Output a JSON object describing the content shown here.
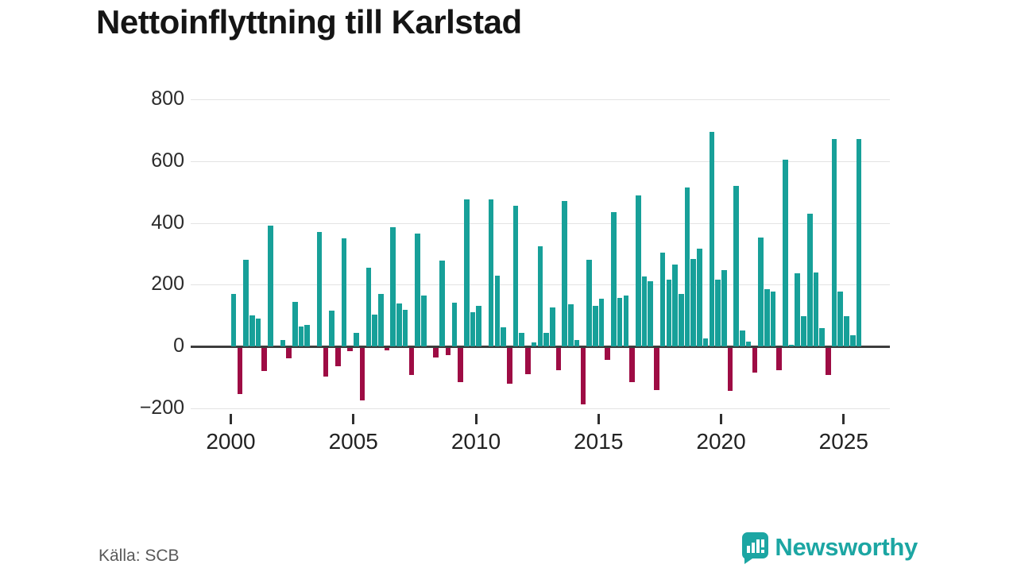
{
  "header": {
    "title": "Nettoinflyttning till Karlstad"
  },
  "footer": {
    "source_label": "Källa: SCB",
    "brand_name": "Newsworthy",
    "brand_color": "#1ca6a3"
  },
  "chart_data": {
    "type": "bar",
    "title": "Nettoinflyttning till Karlstad",
    "xlabel": "",
    "ylabel": "",
    "unit": "persons per quarter",
    "ylim": [
      -200,
      800
    ],
    "grid": true,
    "legend_position": "none",
    "positive_color": "#17a099",
    "negative_color": "#9e0c44",
    "y_ticks": [
      800,
      600,
      400,
      200,
      0,
      -200
    ],
    "y_tick_labels": [
      "800",
      "600",
      "400",
      "200",
      "0",
      "−200"
    ],
    "x_ticks": [
      2000,
      2005,
      2010,
      2015,
      2020,
      2025
    ],
    "x_tick_labels": [
      "2000",
      "2005",
      "2010",
      "2015",
      "2020",
      "2025"
    ],
    "quarters_per_year": 4,
    "start": "2000-Q1",
    "end": "2025-Q3",
    "years": [
      {
        "year": 2000,
        "values": [
          170,
          -150,
          280,
          100
        ]
      },
      {
        "year": 2001,
        "values": [
          90,
          -75,
          390,
          0
        ]
      },
      {
        "year": 2002,
        "values": [
          20,
          -34,
          145,
          65
        ]
      },
      {
        "year": 2003,
        "values": [
          70,
          0,
          370,
          -95
        ]
      },
      {
        "year": 2004,
        "values": [
          115,
          -60,
          350,
          -12
        ]
      },
      {
        "year": 2005,
        "values": [
          45,
          -170,
          255,
          103
        ]
      },
      {
        "year": 2006,
        "values": [
          170,
          -8,
          385,
          140
        ]
      },
      {
        "year": 2007,
        "values": [
          118,
          -90,
          365,
          165
        ]
      },
      {
        "year": 2008,
        "values": [
          0,
          -31,
          277,
          -24
        ]
      },
      {
        "year": 2009,
        "values": [
          141,
          -111,
          475,
          110
        ]
      },
      {
        "year": 2010,
        "values": [
          130,
          0,
          475,
          230
        ]
      },
      {
        "year": 2011,
        "values": [
          62,
          -118,
          455,
          43
        ]
      },
      {
        "year": 2012,
        "values": [
          -86,
          13,
          325,
          43
        ]
      },
      {
        "year": 2013,
        "values": [
          125,
          -73,
          470,
          137
        ]
      },
      {
        "year": 2014,
        "values": [
          21,
          -185,
          280,
          130
        ]
      },
      {
        "year": 2015,
        "values": [
          155,
          -39,
          435,
          158
        ]
      },
      {
        "year": 2016,
        "values": [
          165,
          -112,
          490,
          227
        ]
      },
      {
        "year": 2017,
        "values": [
          210,
          -137,
          305,
          215
        ]
      },
      {
        "year": 2018,
        "values": [
          265,
          170,
          515,
          283
        ]
      },
      {
        "year": 2019,
        "values": [
          316,
          26,
          695,
          215
        ]
      },
      {
        "year": 2020,
        "values": [
          246,
          -140,
          520,
          51
        ]
      },
      {
        "year": 2021,
        "values": [
          15,
          -82,
          352,
          185
        ]
      },
      {
        "year": 2022,
        "values": [
          178,
          -73,
          605,
          5
        ]
      },
      {
        "year": 2023,
        "values": [
          238,
          98,
          429,
          240
        ]
      },
      {
        "year": 2024,
        "values": [
          58,
          -90,
          673,
          178
        ]
      },
      {
        "year": 2025,
        "values": [
          97,
          37,
          673
        ]
      }
    ]
  }
}
